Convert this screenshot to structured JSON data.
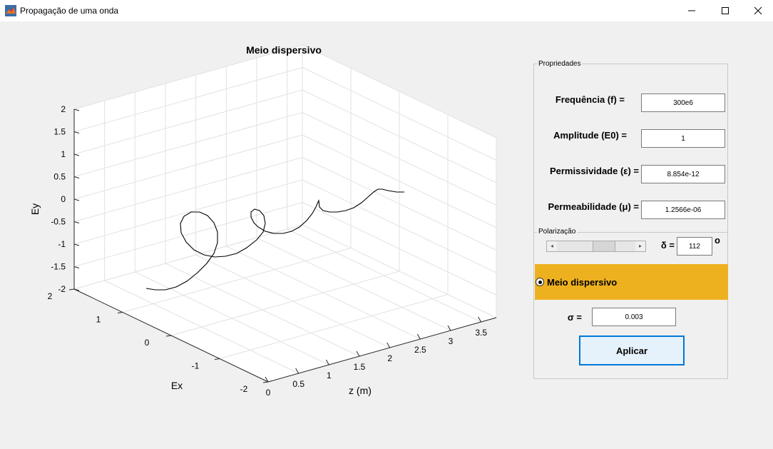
{
  "window": {
    "title": "Propagação de uma onda",
    "minimize_icon": "minimize-icon",
    "maximize_icon": "maximize-icon",
    "close_icon": "close-icon"
  },
  "plot": {
    "title": "Meio dispersivo",
    "xlabel": "Ex",
    "ylabel": "Ey",
    "zlabel": "z (m)",
    "ey_ticks": [
      "2",
      "1.5",
      "1",
      "0.5",
      "0",
      "-0.5",
      "-1",
      "-1.5",
      "-2"
    ],
    "ex_ticks": [
      "2",
      "1",
      "0",
      "-1",
      "-2"
    ],
    "z_ticks": [
      "0",
      "0.5",
      "1",
      "1.5",
      "2",
      "2.5",
      "3",
      "3.5"
    ],
    "line_color": "#000000",
    "grid": true
  },
  "properties": {
    "panel_title": "Propriedades",
    "freq_label": "Frequência (f) =",
    "freq_value": "300e6",
    "amp_label": "Amplitude (E0) =",
    "amp_value": "1",
    "perm_label": "Permissividade (ε) =",
    "perm_value": "8.854e-12",
    "permeab_label": "Permeabilidade (μ) =",
    "permeab_value": "1.2566e-06",
    "polar_title": "Polarização",
    "slider_fraction": 0.62,
    "delta_label": "δ =",
    "delta_value": "112",
    "degree_symbol": "o",
    "radio_label": "Meio dispersivo",
    "radio_color": "#edb120",
    "sigma_label": "σ =",
    "sigma_value": "0.003",
    "apply_label": "Aplicar"
  }
}
